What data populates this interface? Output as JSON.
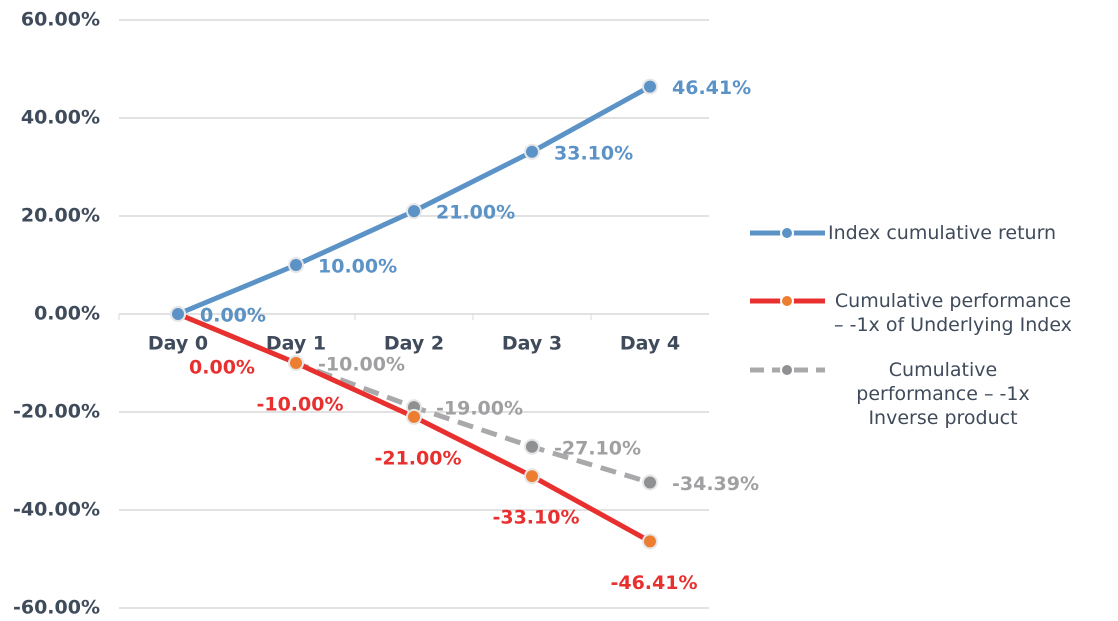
{
  "chart_data": {
    "type": "line",
    "categories": [
      "Day 0",
      "Day 1",
      "Day 2",
      "Day 3",
      "Day 4"
    ],
    "series": [
      {
        "name": "Index cumulative return",
        "color": "#5b93c7",
        "marker_color": "#5b93c7",
        "dashed": false,
        "values": [
          0,
          10,
          21,
          33.1,
          46.41
        ],
        "value_labels": [
          "0.00%",
          "10.00%",
          "21.00%",
          "33.10%",
          "46.41%"
        ]
      },
      {
        "name": "Cumulative performance – -1x of Underlying Index",
        "color": "#e8302f",
        "marker_color": "#ed7d31",
        "dashed": false,
        "values": [
          0,
          -10,
          -21,
          -33.1,
          -46.41
        ],
        "value_labels": [
          "0.00%",
          "-10.00%",
          "-21.00%",
          "-33.10%",
          "-46.41%"
        ]
      },
      {
        "name": "Cumulative performance – -1x Inverse product",
        "color": "#a9a9ab",
        "marker_color": "#8f9092",
        "dashed": true,
        "values": [
          0,
          -10,
          -19,
          -27.1,
          -34.39
        ],
        "value_labels": [
          "0.00%",
          "-10.00%",
          "-19.00%",
          "-27.10%",
          "-34.39%"
        ]
      }
    ],
    "ylim": [
      -60,
      60
    ],
    "yticks": [
      {
        "value": -60,
        "label": "-60.00%"
      },
      {
        "value": -40,
        "label": "-40.00%"
      },
      {
        "value": -20,
        "label": "-20.00%"
      },
      {
        "value": 0,
        "label": "0.00%"
      },
      {
        "value": 20,
        "label": "20.00%"
      },
      {
        "value": 40,
        "label": "40.00%"
      },
      {
        "value": 60,
        "label": "60.00%"
      }
    ],
    "grid": true,
    "legend": "right"
  }
}
